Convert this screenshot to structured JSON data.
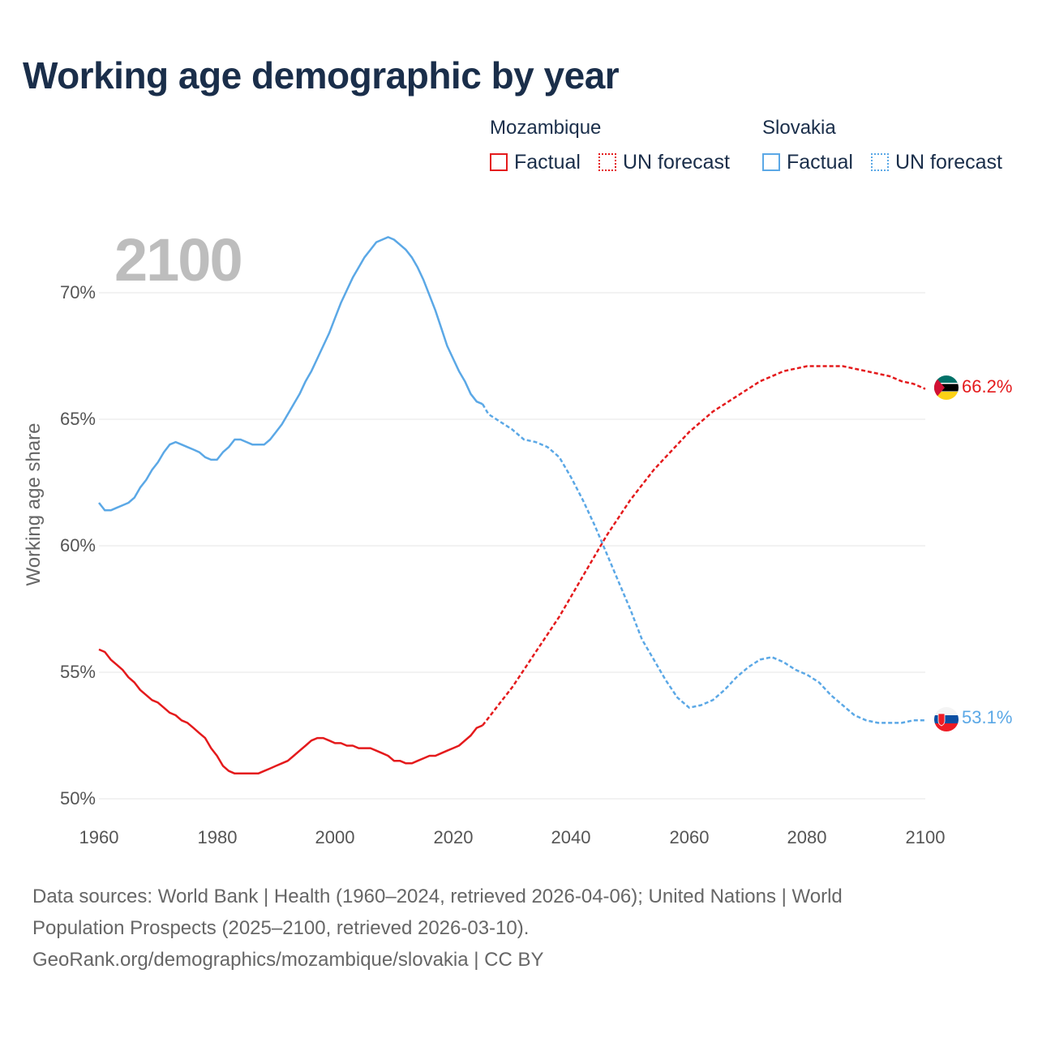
{
  "title": "Working age demographic by year",
  "year_display": "2100",
  "legend": {
    "groups": [
      {
        "name": "Mozambique",
        "color": "#e41a1c",
        "items": [
          {
            "label": "Factual",
            "style": "solid"
          },
          {
            "label": "UN forecast",
            "style": "dotted"
          }
        ]
      },
      {
        "name": "Slovakia",
        "color": "#5ba8e6",
        "items": [
          {
            "label": "Factual",
            "style": "solid"
          },
          {
            "label": "UN forecast",
            "style": "dotted"
          }
        ]
      }
    ]
  },
  "source": {
    "line1": "Data sources: World Bank | Health (1960–2024, retrieved 2026-04-06); United Nations | World",
    "line2": "Population Prospects (2025–2100, retrieved 2026-03-10).",
    "line3": "GeoRank.org/demographics/mozambique/slovakia | CC BY"
  },
  "chart_data": {
    "type": "line",
    "title": "Working age demographic by year",
    "xlabel": "",
    "ylabel": "Working age share",
    "xlim": [
      1960,
      2100
    ],
    "ylim": [
      50,
      72.3
    ],
    "xticks": [
      1960,
      1980,
      2000,
      2020,
      2040,
      2060,
      2080,
      2100
    ],
    "xtick_labels": [
      "1960",
      "1980",
      "2000",
      "2020",
      "2040",
      "2060",
      "2080",
      "2100"
    ],
    "yticks": [
      50,
      55,
      60,
      65,
      70
    ],
    "ytick_labels": [
      "50%",
      "55%",
      "60%",
      "65%",
      "70%"
    ],
    "grid": true,
    "series": [
      {
        "name": "Mozambique",
        "color": "#e41a1c",
        "end_label": "66.2%",
        "flag": "mozambique-flag",
        "factual": [
          [
            1960,
            55.9
          ],
          [
            1961,
            55.8
          ],
          [
            1962,
            55.5
          ],
          [
            1963,
            55.3
          ],
          [
            1964,
            55.1
          ],
          [
            1965,
            54.8
          ],
          [
            1966,
            54.6
          ],
          [
            1967,
            54.3
          ],
          [
            1968,
            54.1
          ],
          [
            1969,
            53.9
          ],
          [
            1970,
            53.8
          ],
          [
            1971,
            53.6
          ],
          [
            1972,
            53.4
          ],
          [
            1973,
            53.3
          ],
          [
            1974,
            53.1
          ],
          [
            1975,
            53.0
          ],
          [
            1976,
            52.8
          ],
          [
            1977,
            52.6
          ],
          [
            1978,
            52.4
          ],
          [
            1979,
            52.0
          ],
          [
            1980,
            51.7
          ],
          [
            1981,
            51.3
          ],
          [
            1982,
            51.1
          ],
          [
            1983,
            51.0
          ],
          [
            1984,
            51.0
          ],
          [
            1985,
            51.0
          ],
          [
            1986,
            51.0
          ],
          [
            1987,
            51.0
          ],
          [
            1988,
            51.1
          ],
          [
            1989,
            51.2
          ],
          [
            1990,
            51.3
          ],
          [
            1991,
            51.4
          ],
          [
            1992,
            51.5
          ],
          [
            1993,
            51.7
          ],
          [
            1994,
            51.9
          ],
          [
            1995,
            52.1
          ],
          [
            1996,
            52.3
          ],
          [
            1997,
            52.4
          ],
          [
            1998,
            52.4
          ],
          [
            1999,
            52.3
          ],
          [
            2000,
            52.2
          ],
          [
            2001,
            52.2
          ],
          [
            2002,
            52.1
          ],
          [
            2003,
            52.1
          ],
          [
            2004,
            52.0
          ],
          [
            2005,
            52.0
          ],
          [
            2006,
            52.0
          ],
          [
            2007,
            51.9
          ],
          [
            2008,
            51.8
          ],
          [
            2009,
            51.7
          ],
          [
            2010,
            51.5
          ],
          [
            2011,
            51.5
          ],
          [
            2012,
            51.4
          ],
          [
            2013,
            51.4
          ],
          [
            2014,
            51.5
          ],
          [
            2015,
            51.6
          ],
          [
            2016,
            51.7
          ],
          [
            2017,
            51.7
          ],
          [
            2018,
            51.8
          ],
          [
            2019,
            51.9
          ],
          [
            2020,
            52.0
          ],
          [
            2021,
            52.1
          ],
          [
            2022,
            52.3
          ],
          [
            2023,
            52.5
          ],
          [
            2024,
            52.8
          ],
          [
            2025,
            52.9
          ]
        ],
        "forecast": [
          [
            2025,
            52.9
          ],
          [
            2026,
            53.2
          ],
          [
            2028,
            53.8
          ],
          [
            2030,
            54.4
          ],
          [
            2032,
            55.1
          ],
          [
            2034,
            55.8
          ],
          [
            2036,
            56.5
          ],
          [
            2038,
            57.2
          ],
          [
            2040,
            58.0
          ],
          [
            2042,
            58.8
          ],
          [
            2044,
            59.6
          ],
          [
            2046,
            60.4
          ],
          [
            2048,
            61.1
          ],
          [
            2050,
            61.8
          ],
          [
            2052,
            62.4
          ],
          [
            2054,
            63.0
          ],
          [
            2056,
            63.5
          ],
          [
            2058,
            64.0
          ],
          [
            2060,
            64.5
          ],
          [
            2062,
            64.9
          ],
          [
            2064,
            65.3
          ],
          [
            2066,
            65.6
          ],
          [
            2068,
            65.9
          ],
          [
            2070,
            66.2
          ],
          [
            2072,
            66.5
          ],
          [
            2074,
            66.7
          ],
          [
            2076,
            66.9
          ],
          [
            2078,
            67.0
          ],
          [
            2080,
            67.1
          ],
          [
            2082,
            67.1
          ],
          [
            2084,
            67.1
          ],
          [
            2086,
            67.1
          ],
          [
            2088,
            67.0
          ],
          [
            2090,
            66.9
          ],
          [
            2092,
            66.8
          ],
          [
            2094,
            66.7
          ],
          [
            2096,
            66.5
          ],
          [
            2098,
            66.4
          ],
          [
            2100,
            66.2
          ]
        ]
      },
      {
        "name": "Slovakia",
        "color": "#5ba8e6",
        "end_label": "53.1%",
        "flag": "slovakia-flag",
        "factual": [
          [
            1960,
            61.7
          ],
          [
            1961,
            61.4
          ],
          [
            1962,
            61.4
          ],
          [
            1963,
            61.5
          ],
          [
            1964,
            61.6
          ],
          [
            1965,
            61.7
          ],
          [
            1966,
            61.9
          ],
          [
            1967,
            62.3
          ],
          [
            1968,
            62.6
          ],
          [
            1969,
            63.0
          ],
          [
            1970,
            63.3
          ],
          [
            1971,
            63.7
          ],
          [
            1972,
            64.0
          ],
          [
            1973,
            64.1
          ],
          [
            1974,
            64.0
          ],
          [
            1975,
            63.9
          ],
          [
            1976,
            63.8
          ],
          [
            1977,
            63.7
          ],
          [
            1978,
            63.5
          ],
          [
            1979,
            63.4
          ],
          [
            1980,
            63.4
          ],
          [
            1981,
            63.7
          ],
          [
            1982,
            63.9
          ],
          [
            1983,
            64.2
          ],
          [
            1984,
            64.2
          ],
          [
            1985,
            64.1
          ],
          [
            1986,
            64.0
          ],
          [
            1987,
            64.0
          ],
          [
            1988,
            64.0
          ],
          [
            1989,
            64.2
          ],
          [
            1990,
            64.5
          ],
          [
            1991,
            64.8
          ],
          [
            1992,
            65.2
          ],
          [
            1993,
            65.6
          ],
          [
            1994,
            66.0
          ],
          [
            1995,
            66.5
          ],
          [
            1996,
            66.9
          ],
          [
            1997,
            67.4
          ],
          [
            1998,
            67.9
          ],
          [
            1999,
            68.4
          ],
          [
            2000,
            69.0
          ],
          [
            2001,
            69.6
          ],
          [
            2002,
            70.1
          ],
          [
            2003,
            70.6
          ],
          [
            2004,
            71.0
          ],
          [
            2005,
            71.4
          ],
          [
            2006,
            71.7
          ],
          [
            2007,
            72.0
          ],
          [
            2008,
            72.1
          ],
          [
            2009,
            72.2
          ],
          [
            2010,
            72.1
          ],
          [
            2011,
            71.9
          ],
          [
            2012,
            71.7
          ],
          [
            2013,
            71.4
          ],
          [
            2014,
            71.0
          ],
          [
            2015,
            70.5
          ],
          [
            2016,
            69.9
          ],
          [
            2017,
            69.3
          ],
          [
            2018,
            68.6
          ],
          [
            2019,
            67.9
          ],
          [
            2020,
            67.4
          ],
          [
            2021,
            66.9
          ],
          [
            2022,
            66.5
          ],
          [
            2023,
            66.0
          ],
          [
            2024,
            65.7
          ],
          [
            2025,
            65.6
          ]
        ],
        "forecast": [
          [
            2025,
            65.6
          ],
          [
            2026,
            65.2
          ],
          [
            2028,
            64.9
          ],
          [
            2030,
            64.6
          ],
          [
            2032,
            64.2
          ],
          [
            2034,
            64.1
          ],
          [
            2036,
            63.9
          ],
          [
            2038,
            63.5
          ],
          [
            2040,
            62.7
          ],
          [
            2042,
            61.8
          ],
          [
            2044,
            60.8
          ],
          [
            2046,
            59.7
          ],
          [
            2048,
            58.6
          ],
          [
            2050,
            57.5
          ],
          [
            2052,
            56.3
          ],
          [
            2054,
            55.5
          ],
          [
            2056,
            54.7
          ],
          [
            2058,
            54.0
          ],
          [
            2060,
            53.6
          ],
          [
            2062,
            53.7
          ],
          [
            2064,
            53.9
          ],
          [
            2066,
            54.3
          ],
          [
            2068,
            54.8
          ],
          [
            2070,
            55.2
          ],
          [
            2072,
            55.5
          ],
          [
            2074,
            55.6
          ],
          [
            2076,
            55.4
          ],
          [
            2078,
            55.1
          ],
          [
            2080,
            54.9
          ],
          [
            2082,
            54.6
          ],
          [
            2084,
            54.1
          ],
          [
            2086,
            53.7
          ],
          [
            2088,
            53.3
          ],
          [
            2090,
            53.1
          ],
          [
            2092,
            53.0
          ],
          [
            2094,
            53.0
          ],
          [
            2096,
            53.0
          ],
          [
            2098,
            53.1
          ],
          [
            2100,
            53.1
          ]
        ]
      }
    ]
  }
}
